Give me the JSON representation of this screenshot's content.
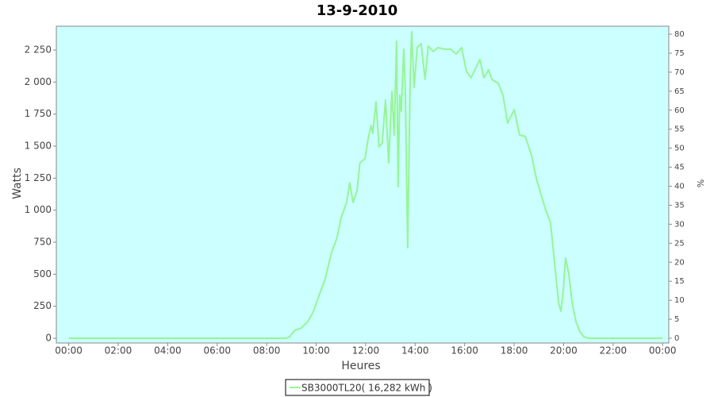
{
  "chart_data": {
    "type": "line",
    "title": "13-9-2010",
    "x_label": "Heures",
    "y_label": "Watts",
    "y2_label": "%",
    "x": [
      0,
      8.75,
      8.92,
      9.14,
      9.4,
      9.66,
      9.88,
      10.14,
      10.36,
      10.62,
      10.84,
      11.0,
      11.23,
      11.36,
      11.49,
      11.65,
      11.77,
      11.97,
      12.1,
      12.22,
      12.29,
      12.42,
      12.54,
      12.67,
      12.8,
      12.93,
      13.06,
      13.15,
      13.25,
      13.31,
      13.38,
      13.44,
      13.54,
      13.6,
      13.7,
      13.8,
      13.86,
      13.96,
      14.08,
      14.24,
      14.4,
      14.53,
      14.73,
      14.92,
      15.17,
      15.43,
      15.66,
      15.88,
      16.07,
      16.26,
      16.46,
      16.62,
      16.78,
      16.97,
      17.1,
      17.36,
      17.55,
      17.74,
      18.0,
      18.22,
      18.45,
      18.7,
      18.9,
      19.09,
      19.28,
      19.47,
      19.63,
      19.8,
      19.89,
      19.99,
      20.08,
      20.21,
      20.34,
      20.5,
      20.66,
      20.82,
      21.0,
      24
    ],
    "series": [
      {
        "name": "SB3000TL20( 16,282 kWh )",
        "color": "#96f596",
        "values": [
          0,
          0,
          10,
          62,
          80,
          130,
          205,
          347,
          459,
          670,
          781,
          936,
          1060,
          1215,
          1060,
          1153,
          1370,
          1401,
          1556,
          1661,
          1599,
          1847,
          1494,
          1525,
          1860,
          1370,
          1928,
          1587,
          2318,
          1184,
          1897,
          1773,
          2256,
          1959,
          707,
          2021,
          2393,
          1959,
          2269,
          2300,
          2021,
          2281,
          2238,
          2269,
          2256,
          2256,
          2219,
          2269,
          2083,
          2033,
          2114,
          2176,
          2033,
          2095,
          2021,
          1990,
          1897,
          1680,
          1785,
          1587,
          1575,
          1432,
          1246,
          1122,
          998,
          905,
          595,
          273,
          211,
          378,
          626,
          502,
          285,
          130,
          50,
          12,
          0,
          0
        ]
      }
    ],
    "xlim": [
      -0.5,
      24.25
    ],
    "xticks": [
      {
        "value": 0,
        "label": "00:00"
      },
      {
        "value": 2,
        "label": "02:00"
      },
      {
        "value": 4,
        "label": "04:00"
      },
      {
        "value": 6,
        "label": "06:00"
      },
      {
        "value": 8,
        "label": "08:00"
      },
      {
        "value": 10,
        "label": "10:00"
      },
      {
        "value": 12,
        "label": "12:00"
      },
      {
        "value": 14,
        "label": "14:00"
      },
      {
        "value": 16,
        "label": "16:00"
      },
      {
        "value": 18,
        "label": "18:00"
      },
      {
        "value": 20,
        "label": "20:00"
      },
      {
        "value": 22,
        "label": "22:00"
      },
      {
        "value": 24,
        "label": "00:00"
      }
    ],
    "ylim": [
      -37,
      2436
    ],
    "yticks": [
      0,
      250,
      500,
      750,
      {
        "value": 1000,
        "label": "1 000"
      },
      {
        "value": 1250,
        "label": "1 250"
      },
      {
        "value": 1500,
        "label": "1 500"
      },
      {
        "value": 1750,
        "label": "1 750"
      },
      {
        "value": 2000,
        "label": "2 000"
      },
      {
        "value": 2250,
        "label": "2 250"
      }
    ],
    "y2lim": [
      -1.25,
      82.1
    ],
    "y2ticks": [
      0,
      5,
      10,
      15,
      20,
      25,
      30,
      35,
      40,
      45,
      50,
      55,
      60,
      65,
      70,
      75,
      80
    ],
    "grid": false,
    "plot_background": "#ccffff",
    "legend": "bottom"
  }
}
